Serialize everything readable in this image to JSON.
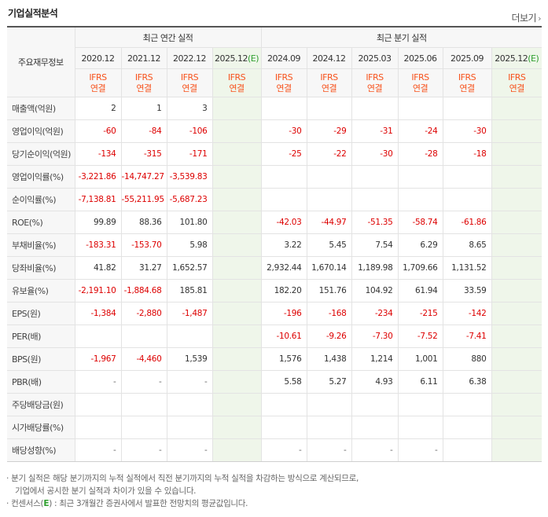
{
  "section_title": "기업실적분석",
  "more_label": "더보기",
  "more_icon": "chevron-right-icon",
  "header": {
    "item_label": "주요재무정보",
    "annual_group": "최근 연간 실적",
    "quarter_group": "최근 분기 실적",
    "periods": [
      "2020.12",
      "2021.12",
      "2022.12",
      "2025.12",
      "2024.09",
      "2024.12",
      "2025.03",
      "2025.06",
      "2025.09",
      "2025.12"
    ],
    "estimate_mark": "(E)",
    "standard_top": "IFRS",
    "standard_bottom": "연결"
  },
  "rows": [
    {
      "label": "매출액(억원)",
      "values": [
        "2",
        "1",
        "3",
        "",
        "",
        "",
        "",
        "",
        "",
        ""
      ]
    },
    {
      "label": "영업이익(억원)",
      "values": [
        "-60",
        "-84",
        "-106",
        "",
        "-30",
        "-29",
        "-31",
        "-24",
        "-30",
        ""
      ]
    },
    {
      "label": "당기순이익(억원)",
      "values": [
        "-134",
        "-315",
        "-171",
        "",
        "-25",
        "-22",
        "-30",
        "-28",
        "-18",
        ""
      ]
    },
    {
      "label": "영업이익률(%)",
      "values": [
        "-3,221.86",
        "-14,747.27",
        "-3,539.83",
        "",
        "",
        "",
        "",
        "",
        "",
        ""
      ]
    },
    {
      "label": "순이익률(%)",
      "values": [
        "-7,138.81",
        "-55,211.95",
        "-5,687.23",
        "",
        "",
        "",
        "",
        "",
        "",
        ""
      ]
    },
    {
      "label": "ROE(%)",
      "values": [
        "99.89",
        "88.36",
        "101.80",
        "",
        "-42.03",
        "-44.97",
        "-51.35",
        "-58.74",
        "-61.86",
        ""
      ]
    },
    {
      "label": "부채비율(%)",
      "values": [
        "-183.31",
        "-153.70",
        "5.98",
        "",
        "3.22",
        "5.45",
        "7.54",
        "6.29",
        "8.65",
        ""
      ]
    },
    {
      "label": "당좌비율(%)",
      "values": [
        "41.82",
        "31.27",
        "1,652.57",
        "",
        "2,932.44",
        "1,670.14",
        "1,189.98",
        "1,709.66",
        "1,131.52",
        ""
      ]
    },
    {
      "label": "유보율(%)",
      "values": [
        "-2,191.10",
        "-1,884.68",
        "185.81",
        "",
        "182.20",
        "151.76",
        "104.92",
        "61.94",
        "33.59",
        ""
      ]
    },
    {
      "label": "EPS(원)",
      "values": [
        "-1,384",
        "-2,880",
        "-1,487",
        "",
        "-196",
        "-168",
        "-234",
        "-215",
        "-142",
        ""
      ]
    },
    {
      "label": "PER(배)",
      "values": [
        "",
        "",
        "",
        "",
        "-10.61",
        "-9.26",
        "-7.30",
        "-7.52",
        "-7.41",
        ""
      ]
    },
    {
      "label": "BPS(원)",
      "values": [
        "-1,967",
        "-4,460",
        "1,539",
        "",
        "1,576",
        "1,438",
        "1,214",
        "1,001",
        "880",
        ""
      ]
    },
    {
      "label": "PBR(배)",
      "values": [
        "-",
        "-",
        "-",
        "",
        "5.58",
        "5.27",
        "4.93",
        "6.11",
        "6.38",
        ""
      ]
    },
    {
      "label": "주당배당금(원)",
      "values": [
        "",
        "",
        "",
        "",
        "",
        "",
        "",
        "",
        "",
        ""
      ]
    },
    {
      "label": "시가배당률(%)",
      "values": [
        "",
        "",
        "",
        "",
        "",
        "",
        "",
        "",
        "",
        ""
      ]
    },
    {
      "label": "배당성향(%)",
      "values": [
        "-",
        "-",
        "-",
        "",
        "-",
        "-",
        "-",
        "-",
        "",
        ""
      ]
    }
  ],
  "notes": {
    "line1": "· 분기 실적은 해당 분기까지의 누적 실적에서 직전 분기까지의 누적 실적을 차감하는 방식으로 계산되므로,",
    "line2": "기업에서 공시한 분기 실적과 차이가 있을 수 있습니다.",
    "line3_prefix": "· 컨센서스(",
    "line3_mark": "E",
    "line3_suffix": ") : 최근 3개월간 증권사에서 발표한 전망치의 평균값입니다."
  },
  "colors": {
    "negative": "#dd0000",
    "standard": "#f7531d",
    "estimate_bg": "#eff6ea",
    "estimate_mark": "#2fa02f"
  }
}
